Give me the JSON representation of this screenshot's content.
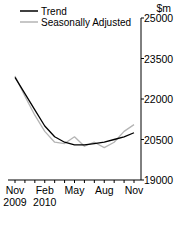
{
  "chart_data": {
    "type": "line",
    "y_label": "$m",
    "categories": [
      "Nov 2009",
      null,
      null,
      "Feb 2010",
      null,
      null,
      "May",
      null,
      null,
      "Aug",
      null,
      null,
      "Nov"
    ],
    "series": [
      {
        "name": "Trend",
        "color": "#000000",
        "values": [
          22800,
          22200,
          21600,
          21000,
          20600,
          20400,
          20300,
          20300,
          20350,
          20400,
          20500,
          20600,
          20750
        ]
      },
      {
        "name": "Seasonally Adjusted",
        "color": "#b4b4b4",
        "values": [
          22850,
          22100,
          21400,
          20800,
          20400,
          20350,
          20600,
          20250,
          20400,
          20200,
          20400,
          20800,
          21050
        ]
      }
    ],
    "ylim": [
      19000,
      25000
    ],
    "yticks": [
      19000,
      20500,
      22000,
      23500,
      25000
    ],
    "legend": "upper left",
    "grid": false
  }
}
